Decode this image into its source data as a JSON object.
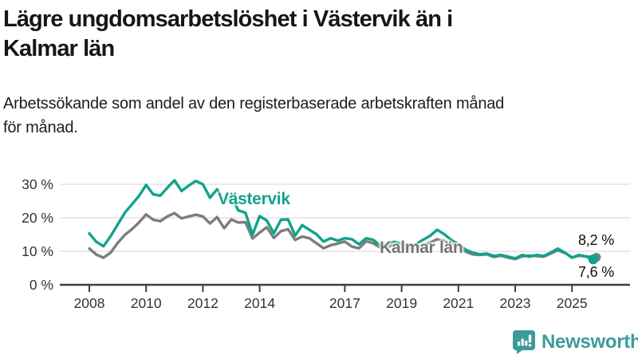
{
  "header": {
    "title_line1": "Lägre ungdomsarbetslöshet i Västervik än i",
    "title_line2": "Kalmar län",
    "subtitle_line1": "Arbetssökande som andel av den registerbaserade arbetskraften månad",
    "subtitle_line2": "för månad."
  },
  "annotations": {
    "vastervik_label": "Västervik",
    "kalmar_label": "Kalmar län",
    "end_value_kalmar": "8,2 %",
    "end_value_vastervik": "7,6 %"
  },
  "footer": {
    "brand": "Newsworthy"
  },
  "colors": {
    "vastervik": "#12a28c",
    "kalmar": "#7d7d7d",
    "kalmar_label": "#757575",
    "grid": "#dcdcdc",
    "axis": "#3f3f3f",
    "tick_text": "#333333",
    "brand_teal": "#3d9b96"
  },
  "chart_data": {
    "type": "line",
    "title": "Lägre ungdomsarbetslöshet i Västervik än i Kalmar län",
    "subtitle": "Arbetssökande som andel av den registerbaserade arbetskraften månad för månad.",
    "unit": "%",
    "grid": true,
    "legend_position": "inline-labels",
    "xlim": [
      2007,
      2027
    ],
    "ylim": [
      0,
      33
    ],
    "x_ticks": [
      2008,
      2010,
      2012,
      2014,
      2017,
      2019,
      2021,
      2023,
      2025
    ],
    "x_tick_labels": [
      "2008",
      "2010",
      "2012",
      "2014",
      "2017",
      "2019",
      "2021",
      "2023",
      "2025"
    ],
    "y_ticks": [
      0,
      10,
      20,
      30
    ],
    "y_tick_labels": [
      "0 %",
      "10 %",
      "20 %",
      "30 %"
    ],
    "x": [
      2008.0,
      2008.25,
      2008.5,
      2008.75,
      2009.0,
      2009.25,
      2009.5,
      2009.75,
      2010.0,
      2010.25,
      2010.5,
      2010.75,
      2011.0,
      2011.25,
      2011.5,
      2011.75,
      2012.0,
      2012.25,
      2012.5,
      2012.75,
      2013.0,
      2013.25,
      2013.5,
      2013.75,
      2014.0,
      2014.25,
      2014.5,
      2014.75,
      2015.0,
      2015.25,
      2015.5,
      2015.75,
      2016.0,
      2016.25,
      2016.5,
      2016.75,
      2017.0,
      2017.25,
      2017.5,
      2017.75,
      2018.0,
      2018.25,
      2018.5,
      2018.75,
      2019.0,
      2019.25,
      2019.5,
      2019.75,
      2020.0,
      2020.25,
      2020.5,
      2020.75,
      2021.0,
      2021.25,
      2021.5,
      2021.75,
      2022.0,
      2022.25,
      2022.5,
      2022.75,
      2023.0,
      2023.25,
      2023.5,
      2023.75,
      2024.0,
      2024.25,
      2024.5,
      2024.75,
      2025.0,
      2025.25,
      2025.5,
      2025.75
    ],
    "series": [
      {
        "name": "Kalmar län",
        "color": "#7d7d7d",
        "end_value": 8.2,
        "end_value_label": "8,2 %",
        "values": [
          10.8,
          9.0,
          8.1,
          9.6,
          12.5,
          14.9,
          16.6,
          18.6,
          21.0,
          19.4,
          19.0,
          20.4,
          21.4,
          19.8,
          20.4,
          20.9,
          20.4,
          18.3,
          20.2,
          16.9,
          19.5,
          18.6,
          18.7,
          13.8,
          15.6,
          17.2,
          14.0,
          16.0,
          16.6,
          13.4,
          14.4,
          13.9,
          12.4,
          10.9,
          11.8,
          12.3,
          12.9,
          11.4,
          10.9,
          13.0,
          12.4,
          11.1,
          11.4,
          11.8,
          11.2,
          10.6,
          10.9,
          11.6,
          12.6,
          13.6,
          13.1,
          12.1,
          11.0,
          9.9,
          9.1,
          8.9,
          9.1,
          8.3,
          8.7,
          8.1,
          7.7,
          8.5,
          8.7,
          8.6,
          8.4,
          9.3,
          10.3,
          9.5,
          8.2,
          8.7,
          8.5,
          8.2
        ]
      },
      {
        "name": "Västervik",
        "color": "#12a28c",
        "end_value": 7.6,
        "end_value_label": "7,6 %",
        "values": [
          15.3,
          12.8,
          11.5,
          14.5,
          18.0,
          21.5,
          24.0,
          26.5,
          29.8,
          27.0,
          26.6,
          29.0,
          31.2,
          28.0,
          29.6,
          31.0,
          30.0,
          26.0,
          28.5,
          24.8,
          26.3,
          22.2,
          21.5,
          15.0,
          20.5,
          19.2,
          15.4,
          19.4,
          19.5,
          14.7,
          17.8,
          16.4,
          15.1,
          12.9,
          13.9,
          13.2,
          13.9,
          13.6,
          12.1,
          13.9,
          13.4,
          11.7,
          12.4,
          12.8,
          12.2,
          11.6,
          12.1,
          13.4,
          14.6,
          16.4,
          15.1,
          13.4,
          12.1,
          10.5,
          9.6,
          9.1,
          9.3,
          8.6,
          8.9,
          8.4,
          7.9,
          8.9,
          8.4,
          8.9,
          8.6,
          9.6,
          10.8,
          9.6,
          8.1,
          8.9,
          8.4,
          7.6
        ]
      }
    ]
  }
}
